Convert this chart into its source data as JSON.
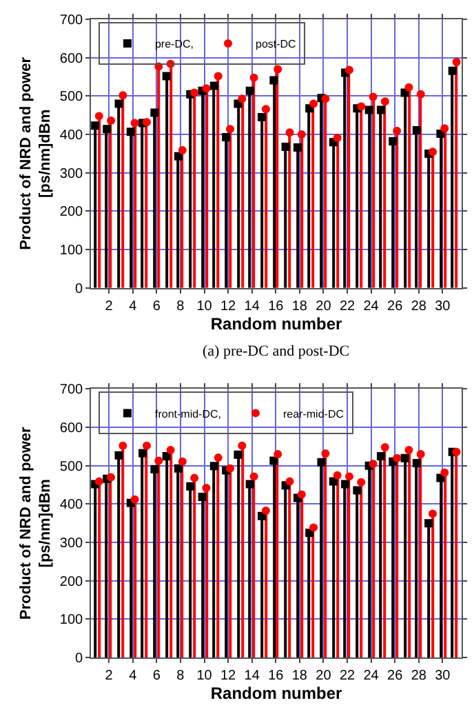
{
  "chart_data": [
    {
      "type": "lollipop",
      "xlabel": "Random number",
      "ylabel": "Product of NRD and power\n[ps/nm]dBm",
      "annotations": [
        "(a) pre-DC and post-DC"
      ],
      "x": [
        1,
        2,
        3,
        4,
        5,
        6,
        7,
        8,
        9,
        10,
        11,
        12,
        13,
        14,
        15,
        16,
        17,
        18,
        19,
        20,
        21,
        22,
        23,
        24,
        25,
        26,
        27,
        28,
        29,
        30,
        31
      ],
      "xlim": [
        0.5,
        31.6
      ],
      "xticks": [
        2,
        4,
        6,
        8,
        10,
        12,
        14,
        16,
        18,
        20,
        22,
        24,
        26,
        28,
        30
      ],
      "ylim": [
        0,
        700
      ],
      "yticks": [
        0,
        100,
        200,
        300,
        400,
        500,
        600,
        700
      ],
      "grid": true,
      "legend": "top left",
      "series": [
        {
          "name": "pre-DC,",
          "color": "#000000",
          "marker": "square",
          "values": [
            423,
            414,
            480,
            407,
            430,
            457,
            552,
            343,
            505,
            514,
            527,
            393,
            480,
            514,
            445,
            541,
            368,
            366,
            468,
            495,
            380,
            561,
            468,
            464,
            464,
            382,
            509,
            411,
            350,
            402,
            566
          ]
        },
        {
          "name": "post-DC",
          "color": "#ff0000",
          "marker": "circle",
          "values": [
            448,
            436,
            502,
            430,
            432,
            577,
            584,
            359,
            509,
            520,
            552,
            414,
            493,
            548,
            466,
            570,
            405,
            400,
            480,
            493,
            391,
            568,
            473,
            498,
            486,
            409,
            523,
            505,
            355,
            416,
            589
          ]
        }
      ]
    },
    {
      "type": "lollipop",
      "xlabel": "Random number",
      "ylabel": "Product of NRD and power\n[ps/nm]dBm",
      "x": [
        1,
        2,
        3,
        4,
        5,
        6,
        7,
        8,
        9,
        10,
        11,
        12,
        13,
        14,
        15,
        16,
        17,
        18,
        19,
        20,
        21,
        22,
        23,
        24,
        25,
        26,
        27,
        28,
        29,
        30,
        31
      ],
      "xlim": [
        0.5,
        31.6
      ],
      "xticks": [
        2,
        4,
        6,
        8,
        10,
        12,
        14,
        16,
        18,
        20,
        22,
        24,
        26,
        28,
        30
      ],
      "ylim": [
        0,
        700
      ],
      "yticks": [
        0,
        100,
        200,
        300,
        400,
        500,
        600,
        700
      ],
      "grid": true,
      "legend": "top left",
      "series": [
        {
          "name": "front-mid-DC,",
          "color": "#000000",
          "marker": "square",
          "values": [
            452,
            466,
            527,
            403,
            533,
            491,
            525,
            493,
            446,
            419,
            499,
            488,
            529,
            452,
            369,
            513,
            449,
            416,
            325,
            509,
            459,
            452,
            436,
            500,
            525,
            511,
            520,
            507,
            350,
            468,
            536
          ]
        },
        {
          "name": "rear-mid-DC",
          "color": "#ff0000",
          "marker": "circle",
          "values": [
            459,
            470,
            552,
            412,
            552,
            513,
            541,
            511,
            468,
            442,
            521,
            493,
            552,
            472,
            383,
            530,
            459,
            425,
            339,
            532,
            475,
            472,
            457,
            505,
            548,
            520,
            541,
            530,
            375,
            482,
            536
          ]
        }
      ]
    }
  ]
}
